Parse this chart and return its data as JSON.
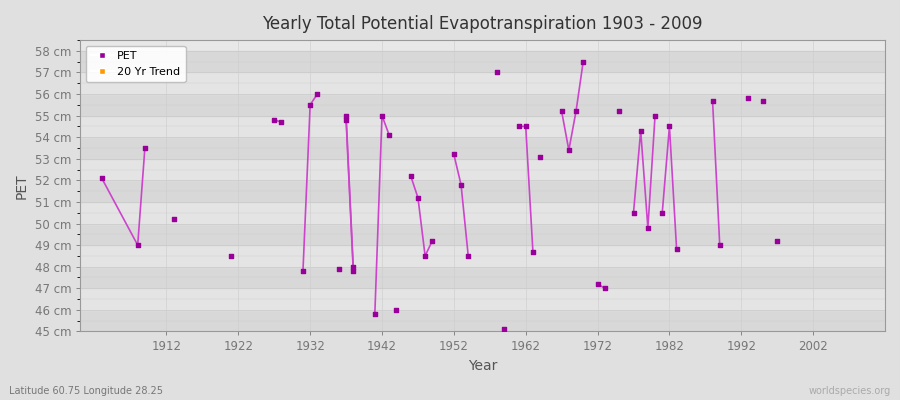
{
  "title": "Yearly Total Potential Evapotranspiration 1903 - 2009",
  "xlabel": "Year",
  "ylabel": "PET",
  "lat_lon_label": "Latitude 60.75 Longitude 28.25",
  "watermark": "worldspecies.org",
  "background_color": "#e0e0e0",
  "plot_bg_color": "#e8e8e8",
  "grid_color": "#d0d0d0",
  "ylim": [
    45,
    58.5
  ],
  "xlim": [
    1900,
    2012
  ],
  "ytick_labels": [
    "45 cm",
    "46 cm",
    "47 cm",
    "48 cm",
    "49 cm",
    "50 cm",
    "51 cm",
    "52 cm",
    "53 cm",
    "54 cm",
    "55 cm",
    "56 cm",
    "57 cm",
    "58 cm"
  ],
  "ytick_values": [
    45,
    46,
    47,
    48,
    49,
    50,
    51,
    52,
    53,
    54,
    55,
    56,
    57,
    58
  ],
  "xtick_values": [
    1912,
    1922,
    1932,
    1942,
    1952,
    1962,
    1972,
    1982,
    1992,
    2002
  ],
  "pet_color": "#990099",
  "pet_line_color": "#cc44cc",
  "trend_color": "#ff9900",
  "segments": [
    [
      1903,
      52.1
    ],
    [
      1908,
      49.0
    ],
    [
      1909,
      53.5
    ],
    null,
    [
      1913,
      50.2
    ],
    null,
    [
      1921,
      48.5
    ],
    null,
    [
      1927,
      54.8
    ],
    [
      1928,
      54.7
    ],
    null,
    [
      1931,
      47.8
    ],
    [
      1932,
      55.5
    ],
    [
      1933,
      56.0
    ],
    null,
    [
      1937,
      54.8
    ],
    [
      1938,
      47.8
    ],
    null,
    [
      1936,
      47.9
    ],
    null,
    [
      1937,
      55.0
    ],
    [
      1938,
      48.0
    ],
    null,
    [
      1941,
      45.8
    ],
    [
      1942,
      55.0
    ],
    [
      1943,
      54.1
    ],
    null,
    [
      1944,
      46.0
    ],
    null,
    [
      1946,
      52.2
    ],
    [
      1947,
      51.2
    ],
    [
      1948,
      48.5
    ],
    [
      1949,
      49.2
    ],
    null,
    [
      1952,
      53.2
    ],
    [
      1953,
      51.8
    ],
    [
      1954,
      48.5
    ],
    null,
    [
      1958,
      57.0
    ],
    null,
    [
      1959,
      45.1
    ],
    null,
    [
      1961,
      54.5
    ],
    [
      1962,
      54.5
    ],
    [
      1963,
      48.7
    ],
    null,
    [
      1964,
      53.1
    ],
    null,
    [
      1967,
      55.2
    ],
    [
      1968,
      53.4
    ],
    [
      1969,
      55.2
    ],
    [
      1970,
      57.5
    ],
    null,
    [
      1972,
      47.2
    ],
    [
      1973,
      47.0
    ],
    null,
    [
      1975,
      55.2
    ],
    null,
    [
      1977,
      50.5
    ],
    [
      1978,
      54.3
    ],
    [
      1979,
      49.8
    ],
    [
      1980,
      55.0
    ],
    null,
    [
      1981,
      50.5
    ],
    [
      1982,
      54.5
    ],
    [
      1983,
      48.8
    ],
    null,
    [
      1988,
      55.7
    ],
    [
      1989,
      49.0
    ],
    null,
    [
      1993,
      55.8
    ],
    null,
    [
      1995,
      55.7
    ],
    null,
    [
      1997,
      49.2
    ]
  ]
}
